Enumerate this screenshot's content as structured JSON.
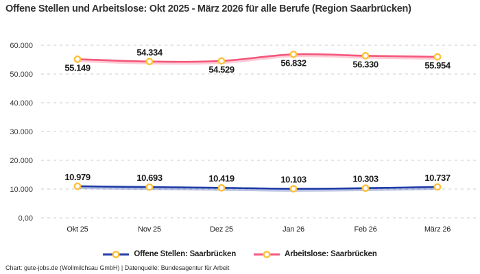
{
  "title": "Offene Stellen und Arbeitslose: Okt 2025 - März 2026 für alle Berufe (Region Saarbrücken)",
  "footer": "Chart: gute-jobs.de (Wollmilchsau GmbH) | Datenquelle: Bundesagentur für Arbeit",
  "colors": {
    "offene_stellen_line": "#1f3ba6",
    "arbeitslose_line": "#f4577b",
    "marker_ring": "#fcc13a",
    "marker_fill": "#ffffff",
    "gridline": "#cbcbcb",
    "title_text": "#333333",
    "data_label_text": "#1c1c1c"
  },
  "chart_data": {
    "type": "line",
    "title": "Offene Stellen und Arbeitslose: Okt 2025 - März 2026 für alle Berufe (Region Saarbrücken)",
    "categories": [
      "Okt 25",
      "Nov 25",
      "Dez 25",
      "Jan 26",
      "Feb 26",
      "März 26"
    ],
    "series": [
      {
        "name": "Offene Stellen: Saarbrücken",
        "color": "#1f3ba6",
        "values": [
          10979,
          10693,
          10419,
          10103,
          10303,
          10737
        ],
        "labels": [
          "10.979",
          "10.693",
          "10.419",
          "10.103",
          "10.303",
          "10.737"
        ],
        "label_position": [
          "above",
          "above",
          "above",
          "above",
          "above",
          "above"
        ]
      },
      {
        "name": "Arbeitslose: Saarbrücken",
        "color": "#f4577b",
        "values": [
          55149,
          54334,
          54529,
          56832,
          56330,
          55954
        ],
        "labels": [
          "55.149",
          "54.334",
          "54.529",
          "56.832",
          "56.330",
          "55.954"
        ],
        "label_position": [
          "below",
          "above",
          "below",
          "below",
          "below",
          "below"
        ]
      }
    ],
    "marker": {
      "shape": "circle",
      "fill": "#ffffff",
      "stroke": "#fcc13a"
    },
    "y_ticks": [
      {
        "value": 0,
        "label": "0,00"
      },
      {
        "value": 10000,
        "label": "10.000"
      },
      {
        "value": 20000,
        "label": "20.000"
      },
      {
        "value": 30000,
        "label": "30.000"
      },
      {
        "value": 40000,
        "label": "40.000"
      },
      {
        "value": 50000,
        "label": "50.000"
      },
      {
        "value": 60000,
        "label": "60.000"
      }
    ],
    "ylim": [
      0,
      60000
    ],
    "xlabel": "",
    "ylabel": "",
    "grid": "horizontal-dashed",
    "legend_position": "bottom"
  }
}
